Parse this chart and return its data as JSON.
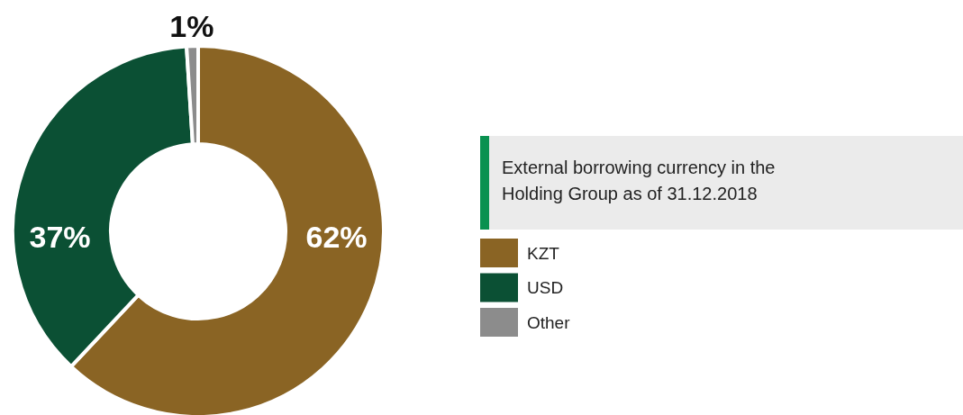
{
  "chart_data": {
    "type": "donut",
    "title": "External borrowing currency in the Holding Group as of 31.12.2018",
    "categories": [
      "KZT",
      "USD",
      "Other"
    ],
    "values": [
      62,
      37,
      1
    ],
    "colors": [
      "#8a6424",
      "#0b5034",
      "#8c8c8c"
    ],
    "value_labels": [
      "62%",
      "37%",
      "1%"
    ],
    "legend": "right"
  }
}
